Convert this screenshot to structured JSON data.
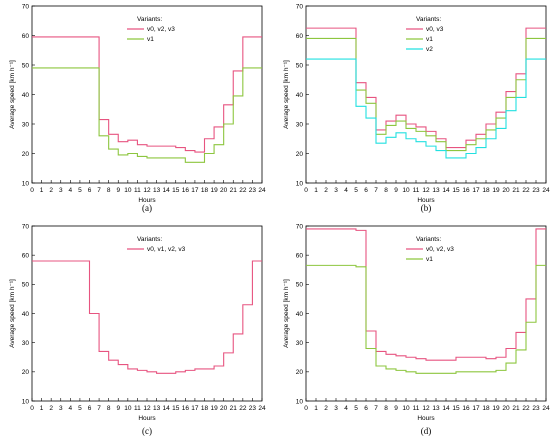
{
  "figure": {
    "panel_labels": [
      "(a)",
      "(b)",
      "(c)",
      "(d)"
    ]
  },
  "chart_data": [
    {
      "type": "line",
      "step": true,
      "panel": "(a)",
      "xlabel": "Hours",
      "ylabel": "Average speed [km h⁻¹]",
      "xlim": [
        0,
        24
      ],
      "ylim": [
        10,
        70
      ],
      "x_ticks": [
        0,
        1,
        2,
        3,
        4,
        5,
        6,
        7,
        8,
        9,
        10,
        11,
        12,
        13,
        14,
        15,
        16,
        17,
        18,
        19,
        20,
        21,
        22,
        23,
        24
      ],
      "y_ticks": [
        10,
        20,
        30,
        40,
        50,
        60,
        70
      ],
      "legend_title": "Variants:",
      "legend_position": "top-center",
      "series": [
        {
          "name": "v0, v2, v3",
          "color": "#e75480",
          "values": [
            59.5,
            59.5,
            59.5,
            59.5,
            59.5,
            59.5,
            59.5,
            31.5,
            26.5,
            24,
            24.5,
            23,
            22.5,
            22.5,
            22.5,
            22,
            21,
            20.5,
            25,
            29,
            36.5,
            48,
            59.5,
            59.5
          ]
        },
        {
          "name": "v1",
          "color": "#8dc63f",
          "values": [
            49,
            49,
            49,
            49,
            49,
            49,
            49,
            26,
            21.5,
            19.5,
            20,
            19,
            18.5,
            18.5,
            18.5,
            18.5,
            17,
            17,
            20,
            23,
            30,
            39.5,
            49,
            49
          ]
        }
      ]
    },
    {
      "type": "line",
      "step": true,
      "panel": "(b)",
      "xlabel": "Hours",
      "ylabel": "Average speed [km h⁻¹]",
      "xlim": [
        0,
        24
      ],
      "ylim": [
        10,
        70
      ],
      "x_ticks": [
        0,
        1,
        2,
        3,
        4,
        5,
        6,
        7,
        8,
        9,
        10,
        11,
        12,
        13,
        14,
        15,
        16,
        17,
        18,
        19,
        20,
        21,
        22,
        23,
        24
      ],
      "y_ticks": [
        10,
        20,
        30,
        40,
        50,
        60,
        70
      ],
      "legend_title": "Variants:",
      "legend_position": "top-center",
      "series": [
        {
          "name": "v0, v3",
          "color": "#e75480",
          "values": [
            62.5,
            62.5,
            62.5,
            62.5,
            62.5,
            44,
            39,
            28,
            31,
            33,
            30,
            29,
            27.5,
            25,
            22,
            22,
            24.5,
            26.5,
            30,
            34,
            41,
            47,
            62.5,
            62.5
          ]
        },
        {
          "name": "v1",
          "color": "#8dc63f",
          "values": [
            59,
            59,
            59,
            59,
            59,
            41.5,
            37,
            26.5,
            29.5,
            31,
            28.5,
            27.5,
            26,
            24,
            21,
            21,
            23,
            25,
            28,
            32,
            39,
            45,
            59,
            59
          ]
        },
        {
          "name": "v2",
          "color": "#22e0e0",
          "values": [
            52,
            52,
            52,
            52,
            52,
            36,
            32,
            23.5,
            25.5,
            27,
            25,
            24,
            22.5,
            21,
            18.5,
            18.5,
            20,
            22,
            25,
            28.5,
            34.5,
            39,
            52,
            52
          ]
        }
      ]
    },
    {
      "type": "line",
      "step": true,
      "panel": "(c)",
      "xlabel": "Hours",
      "ylabel": "Average speed [km h⁻¹]",
      "xlim": [
        0,
        24
      ],
      "ylim": [
        10,
        70
      ],
      "x_ticks": [
        0,
        1,
        2,
        3,
        4,
        5,
        6,
        7,
        8,
        9,
        10,
        11,
        12,
        13,
        14,
        15,
        16,
        17,
        18,
        19,
        20,
        21,
        22,
        23,
        24
      ],
      "y_ticks": [
        10,
        20,
        30,
        40,
        50,
        60,
        70
      ],
      "legend_title": "Variants:",
      "legend_position": "top-center",
      "series": [
        {
          "name": "v0, v1, v2, v3",
          "color": "#e75480",
          "values": [
            58,
            58,
            58,
            58,
            58,
            58,
            40,
            27,
            24,
            22.5,
            21,
            20.5,
            20,
            19.5,
            19.5,
            20,
            20.5,
            21,
            21,
            22,
            26.5,
            33,
            43,
            58
          ]
        }
      ]
    },
    {
      "type": "line",
      "step": true,
      "panel": "(d)",
      "xlabel": "Hours",
      "ylabel": "Average speed [km h⁻¹]",
      "xlim": [
        0,
        24
      ],
      "ylim": [
        10,
        70
      ],
      "x_ticks": [
        0,
        1,
        2,
        3,
        4,
        5,
        6,
        7,
        8,
        9,
        10,
        11,
        12,
        13,
        14,
        15,
        16,
        17,
        18,
        19,
        20,
        21,
        22,
        23,
        24
      ],
      "y_ticks": [
        10,
        20,
        30,
        40,
        50,
        60,
        70
      ],
      "legend_title": "Variants:",
      "legend_position": "top-center",
      "series": [
        {
          "name": "v0, v2, v3",
          "color": "#e75480",
          "values": [
            69,
            69,
            69,
            69,
            69,
            68.5,
            34,
            27,
            26,
            25.5,
            25,
            24.5,
            24,
            24,
            24,
            25,
            25,
            25,
            24.5,
            25,
            28,
            33.5,
            45,
            69
          ]
        },
        {
          "name": "v1",
          "color": "#8dc63f",
          "values": [
            56.5,
            56.5,
            56.5,
            56.5,
            56.5,
            56,
            28,
            22,
            21,
            20.5,
            20,
            19.5,
            19.5,
            19.5,
            19.5,
            20,
            20,
            20,
            20,
            20.5,
            23,
            27.5,
            37,
            56.5
          ]
        }
      ]
    }
  ]
}
